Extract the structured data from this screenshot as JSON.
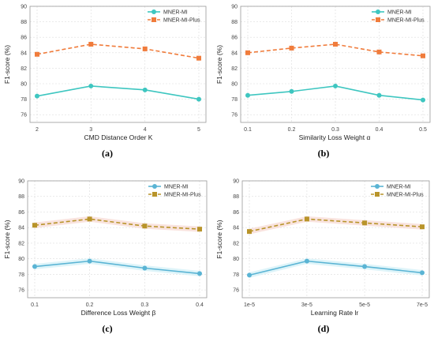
{
  "chart_data": [
    {
      "type": "line",
      "caption": "(a)",
      "xlabel": "CMD Distance Order K",
      "ylabel": "F1-score (%)",
      "categories": [
        "2",
        "3",
        "4",
        "5"
      ],
      "ylim": [
        75,
        90
      ],
      "yticks": [
        76,
        78,
        80,
        82,
        84,
        86,
        88,
        90
      ],
      "grid": true,
      "legend_position": "top-right",
      "series": [
        {
          "name": "MNER-MI",
          "values": [
            78.4,
            79.7,
            79.2,
            78.0
          ],
          "color": "#3ec6c0",
          "marker": "circle",
          "dash": "solid"
        },
        {
          "name": "MNER-MI-Plus",
          "values": [
            83.8,
            85.1,
            84.5,
            83.3
          ],
          "color": "#f07c3c",
          "marker": "square",
          "dash": "dashed"
        }
      ]
    },
    {
      "type": "line",
      "caption": "(b)",
      "xlabel": "Similarity Loss Weight α",
      "ylabel": "F1-score (%)",
      "categories": [
        "0.1",
        "0.2",
        "0.3",
        "0.4",
        "0.5"
      ],
      "ylim": [
        75,
        90
      ],
      "yticks": [
        76,
        78,
        80,
        82,
        84,
        86,
        88,
        90
      ],
      "grid": true,
      "legend_position": "top-right",
      "series": [
        {
          "name": "MNER-MI",
          "values": [
            78.5,
            79.0,
            79.7,
            78.5,
            77.9
          ],
          "color": "#3ec6c0",
          "marker": "circle",
          "dash": "solid"
        },
        {
          "name": "MNER-MI-Plus",
          "values": [
            84.0,
            84.6,
            85.1,
            84.1,
            83.6
          ],
          "color": "#f07c3c",
          "marker": "square",
          "dash": "dashed"
        }
      ]
    },
    {
      "type": "line",
      "caption": "(c)",
      "xlabel": "Difference Loss Weight β",
      "ylabel": "F1-score (%)",
      "categories": [
        "0.1",
        "0.2",
        "0.3",
        "0.4"
      ],
      "ylim": [
        75,
        90
      ],
      "yticks": [
        76,
        78,
        80,
        82,
        84,
        86,
        88,
        90
      ],
      "grid": true,
      "legend_position": "top-right",
      "series": [
        {
          "name": "MNER-MI",
          "values": [
            79.0,
            79.7,
            78.8,
            78.1
          ],
          "color": "#5ab4d4",
          "marker": "circle",
          "dash": "solid"
        },
        {
          "name": "MNER-MI-Plus",
          "values": [
            84.3,
            85.1,
            84.2,
            83.8
          ],
          "color": "#b8942a",
          "marker": "square",
          "dash": "dashed"
        }
      ]
    },
    {
      "type": "line",
      "caption": "(d)",
      "xlabel": "Learning Rate lr",
      "ylabel": "F1-score (%)",
      "categories": [
        "1e-5",
        "3e-5",
        "5e-5",
        "7e-5"
      ],
      "ylim": [
        75,
        90
      ],
      "yticks": [
        76,
        78,
        80,
        82,
        84,
        86,
        88,
        90
      ],
      "grid": true,
      "legend_position": "top-right",
      "series": [
        {
          "name": "MNER-MI",
          "values": [
            77.9,
            79.7,
            79.0,
            78.2
          ],
          "color": "#5ab4d4",
          "marker": "circle",
          "dash": "solid"
        },
        {
          "name": "MNER-MI-Plus",
          "values": [
            83.5,
            85.1,
            84.6,
            84.1
          ],
          "color": "#b8942a",
          "marker": "square",
          "dash": "dashed"
        }
      ]
    }
  ],
  "style": {
    "grid_color": "#dddddd",
    "axis_color": "#999999",
    "band_color_mi_c": "#d6f1f8",
    "band_color_plus_c": "#f8dcd6"
  }
}
